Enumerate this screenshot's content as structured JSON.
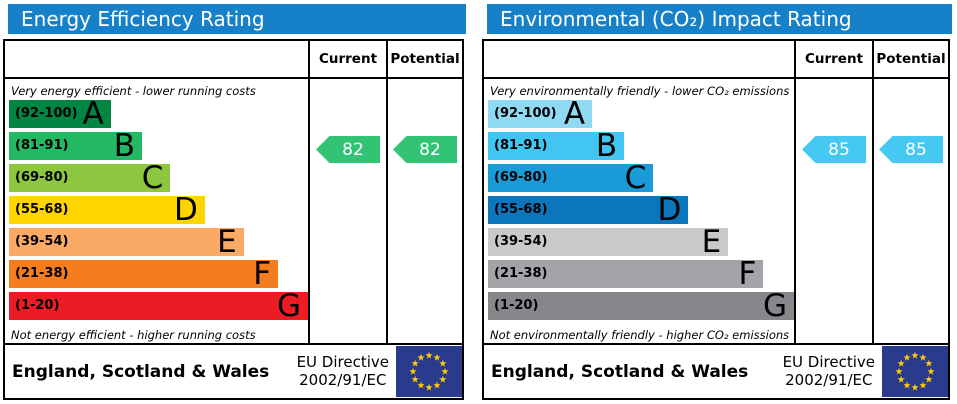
{
  "panels": [
    {
      "title": "Energy Efficiency Rating",
      "title_bg": "#1681c9",
      "columns": {
        "current": "Current",
        "potential": "Potential"
      },
      "top_note": "Very energy efficient - lower running costs",
      "bottom_note": "Not energy efficient - higher running costs",
      "bands": [
        {
          "range": "(92-100)",
          "letter": "A",
          "color": "#008542",
          "width_pct": 34
        },
        {
          "range": "(81-91)",
          "letter": "B",
          "color": "#24b863",
          "width_pct": 44.5
        },
        {
          "range": "(69-80)",
          "letter": "C",
          "color": "#8dc63f",
          "width_pct": 54
        },
        {
          "range": "(55-68)",
          "letter": "D",
          "color": "#ffd500",
          "width_pct": 65.5
        },
        {
          "range": "(39-54)",
          "letter": "E",
          "color": "#fbaa65",
          "width_pct": 78.5
        },
        {
          "range": "(21-38)",
          "letter": "F",
          "color": "#f47d20",
          "width_pct": 90
        },
        {
          "range": "(1-20)",
          "letter": "G",
          "color": "#ec1c24",
          "width_pct": 100
        }
      ],
      "current": {
        "value": "82",
        "band_index": 1,
        "arrow_color": "#33c375"
      },
      "potential": {
        "value": "82",
        "band_index": 1,
        "arrow_color": "#33c375"
      },
      "footer": {
        "region": "England, Scotland & Wales",
        "directive_line1": "EU Directive",
        "directive_line2": "2002/91/EC"
      },
      "flag": {
        "bg": "#2a3a8c",
        "stars": "#ffcc00"
      }
    },
    {
      "title": "Environmental (CO₂) Impact Rating",
      "title_bg": "#1681c9",
      "columns": {
        "current": "Current",
        "potential": "Potential"
      },
      "top_note": "Very environmentally friendly - lower CO₂ emissions",
      "bottom_note": "Not environmentally friendly - higher CO₂ emissions",
      "bands": [
        {
          "range": "(92-100)",
          "letter": "A",
          "color": "#8fd9f3",
          "width_pct": 34
        },
        {
          "range": "(81-91)",
          "letter": "B",
          "color": "#40c6f1",
          "width_pct": 44.5
        },
        {
          "range": "(69-80)",
          "letter": "C",
          "color": "#1a9bd7",
          "width_pct": 54
        },
        {
          "range": "(55-68)",
          "letter": "D",
          "color": "#0b76bc",
          "width_pct": 65.5
        },
        {
          "range": "(39-54)",
          "letter": "E",
          "color": "#c8c9cb",
          "width_pct": 78.5
        },
        {
          "range": "(21-38)",
          "letter": "F",
          "color": "#a2a4a7",
          "width_pct": 90
        },
        {
          "range": "(1-20)",
          "letter": "G",
          "color": "#85878a",
          "width_pct": 100
        }
      ],
      "current": {
        "value": "85",
        "band_index": 1,
        "arrow_color": "#45c9f2"
      },
      "potential": {
        "value": "85",
        "band_index": 1,
        "arrow_color": "#45c9f2"
      },
      "footer": {
        "region": "England, Scotland & Wales",
        "directive_line1": "EU Directive",
        "directive_line2": "2002/91/EC"
      },
      "flag": {
        "bg": "#2a3a8c",
        "stars": "#ffcc00"
      }
    }
  ],
  "chart_data": [
    {
      "type": "bar",
      "orientation": "horizontal",
      "title": "Energy Efficiency Rating",
      "categories": [
        "A (92-100)",
        "B (81-91)",
        "C (69-80)",
        "D (55-68)",
        "E (39-54)",
        "F (21-38)",
        "G (1-20)"
      ],
      "band_lengths_pct": [
        34,
        44.5,
        54,
        65.5,
        78.5,
        90,
        100
      ],
      "series": [
        {
          "name": "Current",
          "value": 82,
          "band": "B"
        },
        {
          "name": "Potential",
          "value": 82,
          "band": "B"
        }
      ],
      "top_label": "Very energy efficient - lower running costs",
      "bottom_label": "Not energy efficient - higher running costs",
      "footer_left": "England, Scotland & Wales",
      "footer_right": "EU Directive 2002/91/EC",
      "legend_position": "none",
      "grid": false
    },
    {
      "type": "bar",
      "orientation": "horizontal",
      "title": "Environmental (CO₂) Impact Rating",
      "categories": [
        "A (92-100)",
        "B (81-91)",
        "C (69-80)",
        "D (55-68)",
        "E (39-54)",
        "F (21-38)",
        "G (1-20)"
      ],
      "band_lengths_pct": [
        34,
        44.5,
        54,
        65.5,
        78.5,
        90,
        100
      ],
      "series": [
        {
          "name": "Current",
          "value": 85,
          "band": "B"
        },
        {
          "name": "Potential",
          "value": 85,
          "band": "B"
        }
      ],
      "top_label": "Very environmentally friendly - lower CO₂ emissions",
      "bottom_label": "Not environmentally friendly - higher CO₂ emissions",
      "footer_left": "England, Scotland & Wales",
      "footer_right": "EU Directive 2002/91/EC",
      "legend_position": "none",
      "grid": false
    }
  ]
}
